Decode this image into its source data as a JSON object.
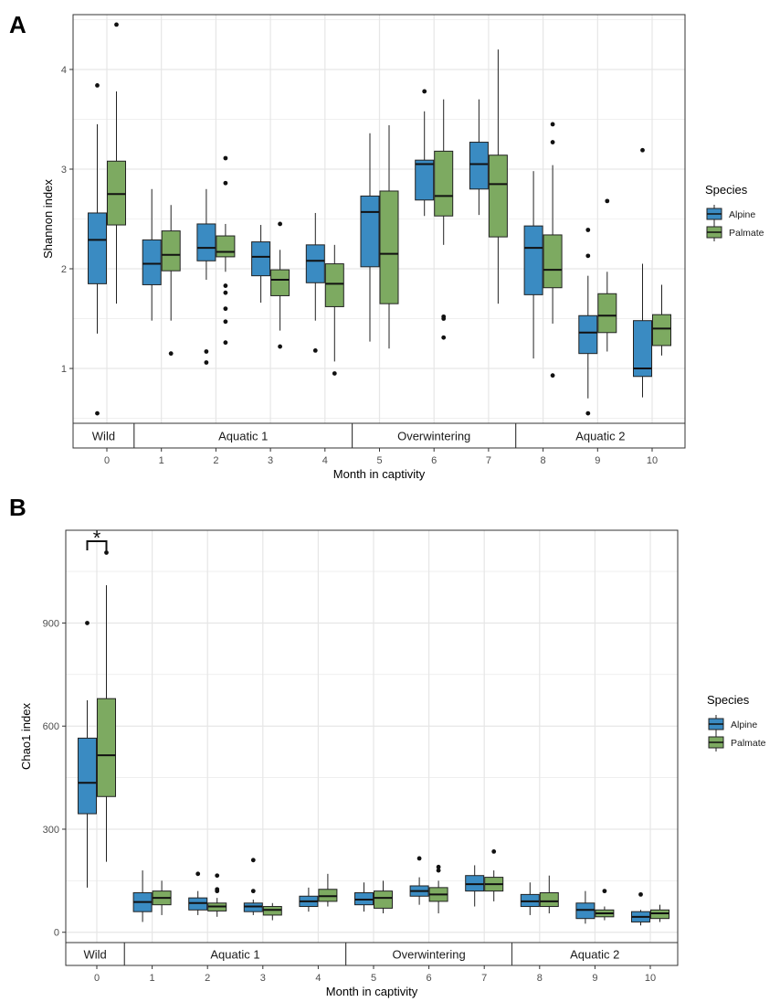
{
  "colors": {
    "alpine": "#3a8bc2",
    "palmate": "#7daa61",
    "grid": "#e6e6e6"
  },
  "chart_data": [
    {
      "type": "box",
      "panel": "A",
      "title": "",
      "xlabel": "Month in captivity",
      "ylabel": "Shannon index",
      "ylim": [
        0.45,
        4.55
      ],
      "yticks": [
        1,
        2,
        3,
        4
      ],
      "ytick_labels": [
        "1",
        "2",
        "3",
        "4"
      ],
      "months": [
        "0",
        "1",
        "2",
        "3",
        "4",
        "5",
        "6",
        "7",
        "8",
        "9",
        "10"
      ],
      "phases": [
        {
          "label": "Wild",
          "months": [
            0,
            0
          ]
        },
        {
          "label": "Aquatic 1",
          "months": [
            1,
            4
          ]
        },
        {
          "label": "Overwintering",
          "months": [
            5,
            7
          ]
        },
        {
          "label": "Aquatic 2",
          "months": [
            8,
            10
          ]
        }
      ],
      "legend": {
        "title": "Species",
        "entries": [
          "Alpine",
          "Palmate"
        ],
        "position": "right"
      },
      "series": [
        {
          "name": "Alpine",
          "boxes": [
            {
              "month": 0,
              "lw": 1.35,
              "q1": 1.85,
              "med": 2.29,
              "q3": 2.56,
              "uw": 3.45,
              "out": [
                0.55,
                3.84
              ]
            },
            {
              "month": 1,
              "lw": 1.48,
              "q1": 1.84,
              "med": 2.05,
              "q3": 2.29,
              "uw": 2.8,
              "out": []
            },
            {
              "month": 2,
              "lw": 1.89,
              "q1": 2.08,
              "med": 2.21,
              "q3": 2.45,
              "uw": 2.8,
              "out": [
                1.06,
                1.17
              ]
            },
            {
              "month": 3,
              "lw": 1.66,
              "q1": 1.93,
              "med": 2.12,
              "q3": 2.27,
              "uw": 2.44,
              "out": []
            },
            {
              "month": 4,
              "lw": 1.48,
              "q1": 1.86,
              "med": 2.08,
              "q3": 2.24,
              "uw": 2.56,
              "out": [
                1.18
              ]
            },
            {
              "month": 5,
              "lw": 1.27,
              "q1": 2.02,
              "med": 2.57,
              "q3": 2.73,
              "uw": 3.36,
              "out": []
            },
            {
              "month": 6,
              "lw": 2.53,
              "q1": 2.69,
              "med": 3.05,
              "q3": 3.09,
              "uw": 3.58,
              "out": [
                3.78
              ]
            },
            {
              "month": 7,
              "lw": 2.54,
              "q1": 2.8,
              "med": 3.05,
              "q3": 3.27,
              "uw": 3.7,
              "out": []
            },
            {
              "month": 8,
              "lw": 1.1,
              "q1": 1.74,
              "med": 2.21,
              "q3": 2.43,
              "uw": 2.98,
              "out": []
            },
            {
              "month": 9,
              "lw": 0.7,
              "q1": 1.15,
              "med": 1.36,
              "q3": 1.53,
              "uw": 1.93,
              "out": [
                0.55,
                2.13,
                2.39
              ]
            },
            {
              "month": 10,
              "lw": 0.71,
              "q1": 0.92,
              "med": 1.0,
              "q3": 1.48,
              "uw": 2.05,
              "out": [
                3.19
              ]
            }
          ]
        },
        {
          "name": "Palmate",
          "boxes": [
            {
              "month": 0,
              "lw": 1.65,
              "q1": 2.44,
              "med": 2.75,
              "q3": 3.08,
              "uw": 3.78,
              "out": [
                4.45
              ]
            },
            {
              "month": 1,
              "lw": 1.48,
              "q1": 1.98,
              "med": 2.14,
              "q3": 2.38,
              "uw": 2.64,
              "out": [
                1.15
              ]
            },
            {
              "month": 2,
              "lw": 1.97,
              "q1": 2.12,
              "med": 2.17,
              "q3": 2.33,
              "uw": 2.45,
              "out": [
                1.26,
                1.47,
                1.6,
                1.76,
                1.83,
                2.86,
                3.11
              ]
            },
            {
              "month": 3,
              "lw": 1.38,
              "q1": 1.73,
              "med": 1.89,
              "q3": 1.99,
              "uw": 2.19,
              "out": [
                1.22,
                2.45
              ]
            },
            {
              "month": 4,
              "lw": 1.07,
              "q1": 1.62,
              "med": 1.85,
              "q3": 2.05,
              "uw": 2.24,
              "out": [
                0.95
              ]
            },
            {
              "month": 5,
              "lw": 1.2,
              "q1": 1.65,
              "med": 2.15,
              "q3": 2.78,
              "uw": 3.44,
              "out": []
            },
            {
              "month": 6,
              "lw": 2.24,
              "q1": 2.53,
              "med": 2.73,
              "q3": 3.18,
              "uw": 3.7,
              "out": [
                1.31,
                1.5,
                1.52
              ]
            },
            {
              "month": 7,
              "lw": 1.65,
              "q1": 2.32,
              "med": 2.85,
              "q3": 3.14,
              "uw": 4.2,
              "out": []
            },
            {
              "month": 8,
              "lw": 1.45,
              "q1": 1.81,
              "med": 1.99,
              "q3": 2.34,
              "uw": 3.04,
              "out": [
                0.93,
                3.27,
                3.45
              ]
            },
            {
              "month": 9,
              "lw": 1.17,
              "q1": 1.36,
              "med": 1.53,
              "q3": 1.75,
              "uw": 1.97,
              "out": [
                2.68
              ]
            },
            {
              "month": 10,
              "lw": 1.13,
              "q1": 1.23,
              "med": 1.4,
              "q3": 1.54,
              "uw": 1.84,
              "out": []
            }
          ]
        }
      ],
      "annotations": []
    },
    {
      "type": "box",
      "panel": "B",
      "title": "",
      "xlabel": "Month in captivity",
      "ylabel": "Chao1 index",
      "ylim": [
        -30,
        1170
      ],
      "yticks": [
        0,
        300,
        600,
        900
      ],
      "ytick_labels": [
        "0",
        "300",
        "600",
        "900"
      ],
      "months": [
        "0",
        "1",
        "2",
        "3",
        "4",
        "5",
        "6",
        "7",
        "8",
        "9",
        "10"
      ],
      "phases": [
        {
          "label": "Wild",
          "months": [
            0,
            0
          ]
        },
        {
          "label": "Aquatic 1",
          "months": [
            1,
            4
          ]
        },
        {
          "label": "Overwintering",
          "months": [
            5,
            7
          ]
        },
        {
          "label": "Aquatic 2",
          "months": [
            8,
            10
          ]
        }
      ],
      "legend": {
        "title": "Species",
        "entries": [
          "Alpine",
          "Palmate"
        ],
        "position": "right"
      },
      "series": [
        {
          "name": "Alpine",
          "boxes": [
            {
              "month": 0,
              "lw": 130,
              "q1": 345,
              "med": 435,
              "q3": 565,
              "uw": 675,
              "out": [
                900
              ]
            },
            {
              "month": 1,
              "lw": 30,
              "q1": 60,
              "med": 88,
              "q3": 115,
              "uw": 180,
              "out": []
            },
            {
              "month": 2,
              "lw": 50,
              "q1": 65,
              "med": 85,
              "q3": 100,
              "uw": 120,
              "out": [
                170
              ]
            },
            {
              "month": 3,
              "lw": 50,
              "q1": 60,
              "med": 75,
              "q3": 85,
              "uw": 95,
              "out": [
                120,
                210
              ]
            },
            {
              "month": 4,
              "lw": 60,
              "q1": 75,
              "med": 90,
              "q3": 105,
              "uw": 130,
              "out": []
            },
            {
              "month": 5,
              "lw": 60,
              "q1": 80,
              "med": 95,
              "q3": 115,
              "uw": 145,
              "out": []
            },
            {
              "month": 6,
              "lw": 80,
              "q1": 105,
              "med": 120,
              "q3": 135,
              "uw": 160,
              "out": [
                215
              ]
            },
            {
              "month": 7,
              "lw": 75,
              "q1": 120,
              "med": 140,
              "q3": 165,
              "uw": 195,
              "out": []
            },
            {
              "month": 8,
              "lw": 50,
              "q1": 75,
              "med": 90,
              "q3": 110,
              "uw": 145,
              "out": []
            },
            {
              "month": 9,
              "lw": 25,
              "q1": 40,
              "med": 65,
              "q3": 85,
              "uw": 120,
              "out": []
            },
            {
              "month": 10,
              "lw": 20,
              "q1": 30,
              "med": 45,
              "q3": 60,
              "uw": 65,
              "out": [
                110
              ]
            }
          ]
        },
        {
          "name": "Palmate",
          "boxes": [
            {
              "month": 0,
              "lw": 205,
              "q1": 395,
              "med": 515,
              "q3": 680,
              "uw": 1010,
              "out": [
                1105
              ]
            },
            {
              "month": 1,
              "lw": 50,
              "q1": 80,
              "med": 100,
              "q3": 120,
              "uw": 150,
              "out": []
            },
            {
              "month": 2,
              "lw": 45,
              "q1": 62,
              "med": 75,
              "q3": 85,
              "uw": 100,
              "out": [
                120,
                125,
                165
              ]
            },
            {
              "month": 3,
              "lw": 35,
              "q1": 50,
              "med": 65,
              "q3": 75,
              "uw": 85,
              "out": []
            },
            {
              "month": 4,
              "lw": 75,
              "q1": 90,
              "med": 105,
              "q3": 125,
              "uw": 170,
              "out": []
            },
            {
              "month": 5,
              "lw": 55,
              "q1": 70,
              "med": 100,
              "q3": 120,
              "uw": 150,
              "out": []
            },
            {
              "month": 6,
              "lw": 55,
              "q1": 90,
              "med": 110,
              "q3": 130,
              "uw": 150,
              "out": [
                180,
                190
              ]
            },
            {
              "month": 7,
              "lw": 90,
              "q1": 120,
              "med": 140,
              "q3": 160,
              "uw": 180,
              "out": [
                235
              ]
            },
            {
              "month": 8,
              "lw": 55,
              "q1": 75,
              "med": 90,
              "q3": 115,
              "uw": 165,
              "out": []
            },
            {
              "month": 9,
              "lw": 35,
              "q1": 45,
              "med": 55,
              "q3": 65,
              "uw": 75,
              "out": [
                120
              ]
            },
            {
              "month": 10,
              "lw": 30,
              "q1": 40,
              "med": 55,
              "q3": 65,
              "uw": 80,
              "out": []
            }
          ]
        }
      ],
      "annotations": [
        {
          "text": "*",
          "month": 0
        }
      ]
    }
  ]
}
